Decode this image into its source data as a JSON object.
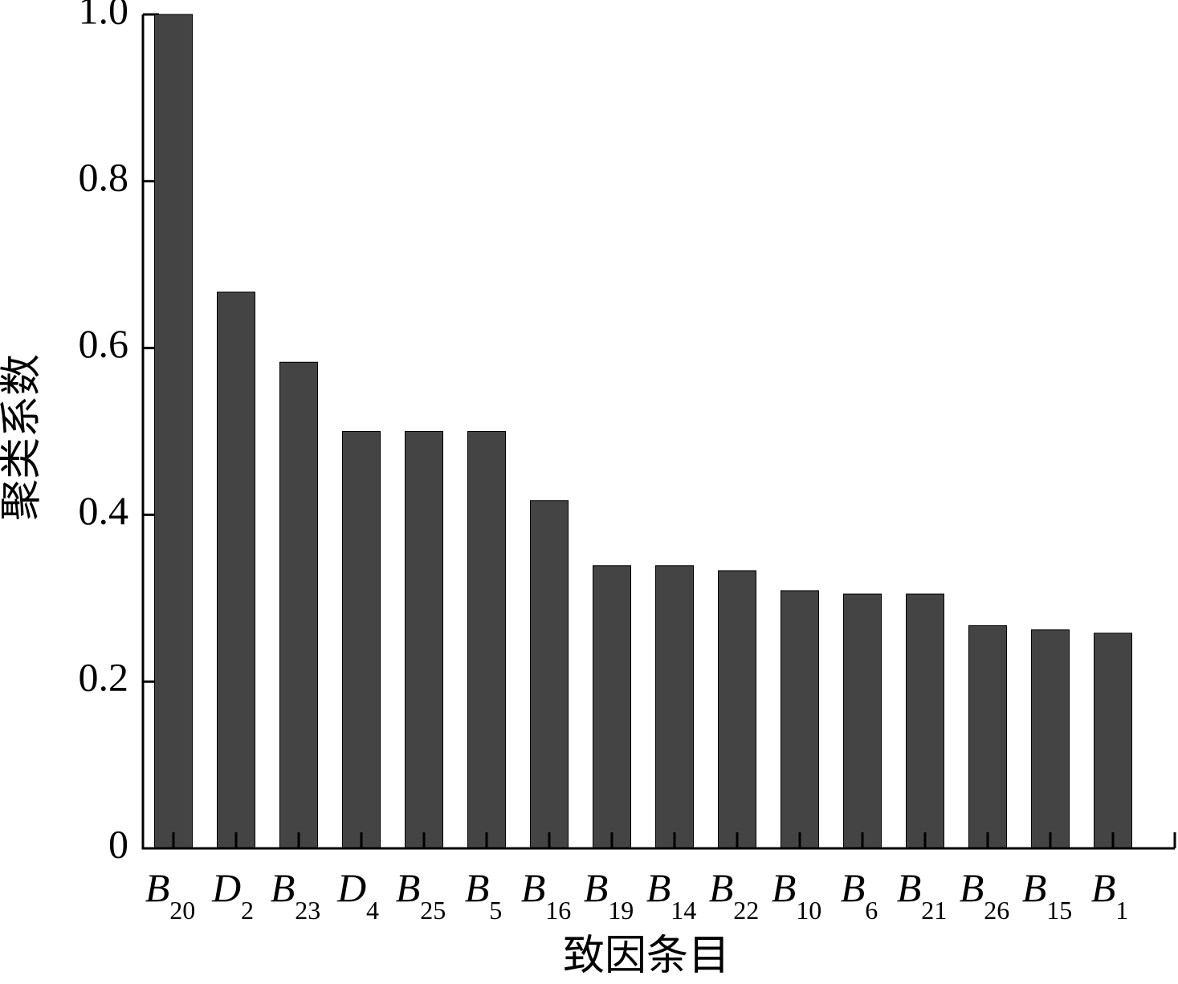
{
  "chart_data": {
    "type": "bar",
    "xlabel": "致因条目",
    "ylabel": "聚类系数",
    "categories": [
      "B20",
      "D2",
      "B23",
      "D4",
      "B25",
      "B5",
      "B16",
      "B19",
      "B14",
      "B22",
      "B10",
      "B6",
      "B21",
      "B26",
      "B15",
      "B1"
    ],
    "values": [
      1.0,
      0.667,
      0.583,
      0.5,
      0.5,
      0.5,
      0.417,
      0.339,
      0.339,
      0.333,
      0.309,
      0.305,
      0.305,
      0.267,
      0.262,
      0.258
    ],
    "color": "#444444",
    "ylim": [
      0,
      1
    ],
    "yticks": [
      0,
      0.2,
      0.4,
      0.6,
      0.8,
      {
        "value": 1,
        "label": "1.0"
      }
    ],
    "grid": false
  }
}
